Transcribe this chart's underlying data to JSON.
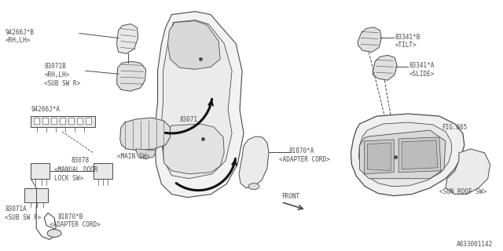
{
  "bg_color": "#ffffff",
  "line_color": "#4a4a4a",
  "dpi": 100,
  "fig_width": 6.4,
  "fig_height": 3.2,
  "labels": {
    "94266JB": "94266J*B",
    "RH_LH_top": "<RH,LH>",
    "83071B": "83071B",
    "RH_LH_bot": "<RH,LH>",
    "SUB_SW_R": "<SUB SW R>",
    "94266JA": "94266J*A",
    "83071": "83071",
    "MAIN_SW": "<MAIN SW>",
    "83078": "83078",
    "MANUAL_DOOR": "<MANUAL DOOR",
    "LOCK_SW": "LOCK SW>",
    "83071A": "83071A",
    "SUB_SW_F": "<SUB SW F>",
    "81870B": "81870*B",
    "ADAPTER_CORD_B": "<ADAPTER CORD>",
    "81870A": "81870*A",
    "ADAPTER_CORD_A": "<ADAPTER CORD>",
    "83341B": "83341*B",
    "TILT": "<TILT>",
    "83341A": "83341*A",
    "SLIDE": "<SLIDE>",
    "FIG865": "FIG.865",
    "SUN_ROOF_SW": "<SUN ROOF SW>",
    "FRONT": "FRONT",
    "PART_NUM": "A833001142"
  }
}
